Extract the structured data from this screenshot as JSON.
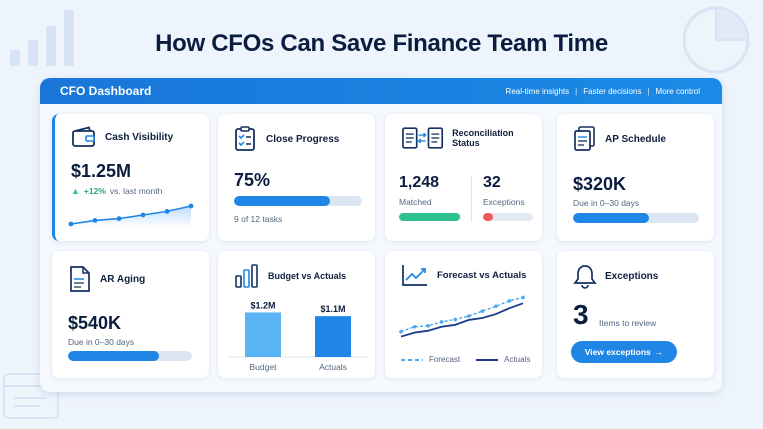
{
  "page": {
    "title": "How CFOs Can Save Finance Team Time"
  },
  "panel": {
    "title": "CFO Dashboard",
    "links": [
      "Real-time insights",
      "Faster decisions",
      "More control"
    ]
  },
  "cards": {
    "cash": {
      "title": "Cash Visibility",
      "value": "$1.25M",
      "delta": "+12%",
      "delta_note": "vs. last month",
      "trend": [
        2,
        3,
        3.5,
        4.5,
        5.5,
        7
      ]
    },
    "close": {
      "title": "Close Progress",
      "value": "75%",
      "progress": 0.75,
      "note": "9 of 12 tasks"
    },
    "recon": {
      "title": "Reconciliation Status",
      "matched_value": "1,248",
      "matched_label": "Matched",
      "matched_progress": 0.98,
      "exceptions_value": "32",
      "exceptions_label": "Exceptions",
      "exceptions_progress": 0.2
    },
    "ap": {
      "title": "AP Schedule",
      "value": "$320K",
      "note": "Due in 0–30 days",
      "progress": 0.6
    },
    "ar": {
      "title": "AR Aging",
      "value": "$540K",
      "note": "Due in 0–30 days",
      "progress": 0.73
    },
    "budget": {
      "title": "Budget vs Actuals",
      "bars": [
        {
          "label": "Budget",
          "value_label": "$1.2M",
          "value": 1.2,
          "color": "#5ab3f5"
        },
        {
          "label": "Actuals",
          "value_label": "$1.1M",
          "value": 1.1,
          "color": "#1f86e6"
        }
      ]
    },
    "forecast": {
      "title": "Forecast vs Actuals",
      "forecast_label": "Forecast",
      "actuals_label": "Actuals",
      "forecast": [
        2,
        3,
        3.2,
        4,
        4.5,
        5.2,
        6.2,
        7.2,
        8.3,
        9
      ],
      "actuals": [
        1,
        1.8,
        2.2,
        3,
        3.4,
        4.4,
        4.8,
        5.6,
        6.8,
        7.8
      ]
    },
    "exceptions": {
      "title": "Exceptions",
      "count": "3",
      "note": "Items to review",
      "button_label": "View exceptions"
    }
  },
  "colors": {
    "accent": "#1f86e6",
    "accent_light": "#5ab3f5",
    "success": "#2fc28e",
    "danger": "#ef5a5e",
    "forecast_line": "#4aa8f0",
    "actuals_line": "#1a3a8a"
  }
}
